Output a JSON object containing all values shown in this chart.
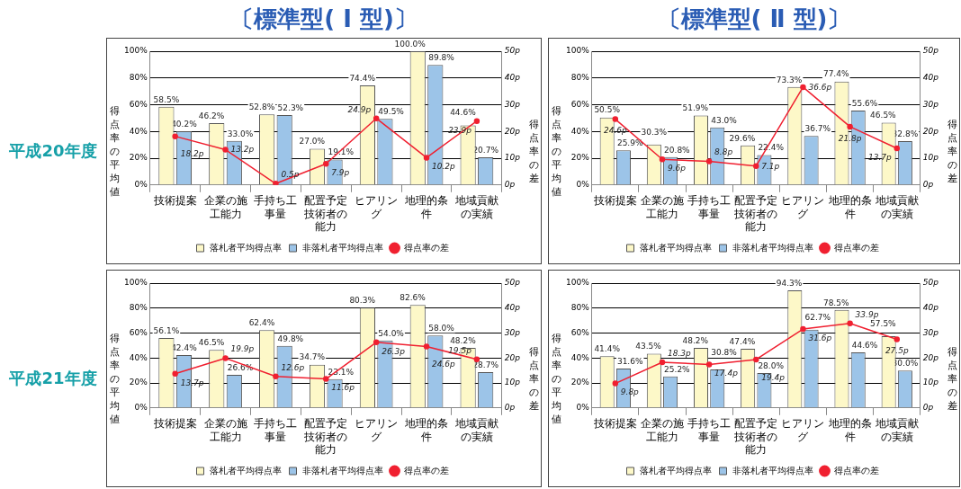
{
  "chart_data": [
    {
      "type": "bar",
      "title": "〔標準型( Ⅰ 型)〕",
      "subtitle": "平成20年度",
      "ylabel": "得点率の平均値",
      "y2label": "得点率の差",
      "categories": [
        "技術提案",
        "企業の施工能力",
        "手持ち工事量",
        "配置予定技術者の能力",
        "ヒアリング",
        "地理的条件",
        "地域貢献の実績"
      ],
      "ylim": [
        0,
        100
      ],
      "yticks": [
        {
          "value": 0,
          "label": "0%"
        },
        {
          "value": 20,
          "label": "20%"
        },
        {
          "value": 40,
          "label": "40%"
        },
        {
          "value": 60,
          "label": "60%"
        },
        {
          "value": 80,
          "label": "80%"
        },
        {
          "value": 100,
          "label": "100%"
        }
      ],
      "y2lim": [
        0,
        50
      ],
      "y2ticks": [
        {
          "value": 0,
          "label": "0p"
        },
        {
          "value": 10,
          "label": "10p"
        },
        {
          "value": 20,
          "label": "20p"
        },
        {
          "value": 30,
          "label": "30p"
        },
        {
          "value": 40,
          "label": "40p"
        },
        {
          "value": 50,
          "label": "50p"
        }
      ],
      "grid": "y",
      "legend": "bottom",
      "marker": "circle",
      "series": [
        {
          "name": "落札者平均得点率",
          "color": "#fdf8c8",
          "values": [
            58.5,
            46.2,
            52.8,
            27.0,
            74.4,
            100.0,
            44.6
          ],
          "value_labels": [
            "58.5%",
            "46.2%",
            "52.8%",
            "27.0%",
            "74.4%",
            "100.0%",
            "44.6%"
          ]
        },
        {
          "name": "非落札者平均得点率",
          "color": "#9cc4e8",
          "values": [
            40.2,
            33.0,
            52.3,
            19.1,
            49.5,
            89.8,
            20.7
          ],
          "value_labels": [
            "40.2%",
            "33.0%",
            "52.3%",
            "19.1%",
            "49.5%",
            "89.8%",
            "20.7%"
          ]
        },
        {
          "name": "得点率の差",
          "type": "line",
          "axis": "y2",
          "color": "#f02030",
          "values": [
            18.2,
            13.2,
            0.5,
            7.9,
            24.9,
            10.2,
            23.9
          ],
          "value_labels": [
            "18.2p",
            "13.2p",
            "0.5p",
            "7.9p",
            "24.9p",
            "10.2p",
            "23.9p"
          ]
        }
      ]
    },
    {
      "type": "bar",
      "title": "〔標準型( Ⅱ 型)〕",
      "ylabel": "得点率の平均値",
      "y2label": "得点率の差",
      "categories": [
        "技術提案",
        "企業の施工能力",
        "手持ち工事量",
        "配置予定技術者の能力",
        "ヒアリング",
        "地理的条件",
        "地域貢献の実績"
      ],
      "ylim": [
        0,
        100
      ],
      "yticks": [
        {
          "value": 0,
          "label": "0%"
        },
        {
          "value": 20,
          "label": "20%"
        },
        {
          "value": 40,
          "label": "40%"
        },
        {
          "value": 60,
          "label": "60%"
        },
        {
          "value": 80,
          "label": "80%"
        },
        {
          "value": 100,
          "label": "100%"
        }
      ],
      "y2lim": [
        0,
        50
      ],
      "y2ticks": [
        {
          "value": 0,
          "label": "0p"
        },
        {
          "value": 10,
          "label": "10p"
        },
        {
          "value": 20,
          "label": "20p"
        },
        {
          "value": 30,
          "label": "30p"
        },
        {
          "value": 40,
          "label": "40p"
        },
        {
          "value": 50,
          "label": "50p"
        }
      ],
      "grid": "y",
      "legend": "bottom",
      "marker": "circle",
      "series": [
        {
          "name": "落札者平均得点率",
          "color": "#fdf8c8",
          "values": [
            50.5,
            30.3,
            51.9,
            29.6,
            73.3,
            77.4,
            46.5
          ],
          "value_labels": [
            "50.5%",
            "30.3%",
            "51.9%",
            "29.6%",
            "73.3%",
            "77.4%",
            "46.5%"
          ]
        },
        {
          "name": "非落札者平均得点率",
          "color": "#9cc4e8",
          "values": [
            25.9,
            20.8,
            43.0,
            22.4,
            36.7,
            55.6,
            32.8
          ],
          "value_labels": [
            "25.9%",
            "20.8%",
            "43.0%",
            "22.4%",
            "36.7%",
            "55.6%",
            "32.8%"
          ]
        },
        {
          "name": "得点率の差",
          "type": "line",
          "axis": "y2",
          "color": "#f02030",
          "values": [
            24.6,
            9.6,
            8.8,
            7.1,
            36.6,
            21.8,
            13.7
          ],
          "value_labels": [
            "24.6p",
            "9.6p",
            "8.8p",
            "7.1p",
            "36.6p",
            "21.8p",
            "13.7p"
          ]
        }
      ]
    },
    {
      "type": "bar",
      "subtitle": "平成21年度",
      "ylabel": "得点率の平均値",
      "y2label": "得点率の差",
      "categories": [
        "技術提案",
        "企業の施工能力",
        "手持ち工事量",
        "配置予定技術者の能力",
        "ヒアリング",
        "地理的条件",
        "地域貢献の実績"
      ],
      "ylim": [
        0,
        100
      ],
      "yticks": [
        {
          "value": 0,
          "label": "0%"
        },
        {
          "value": 20,
          "label": "20%"
        },
        {
          "value": 40,
          "label": "40%"
        },
        {
          "value": 60,
          "label": "60%"
        },
        {
          "value": 80,
          "label": "80%"
        },
        {
          "value": 100,
          "label": "100%"
        }
      ],
      "y2lim": [
        0,
        50
      ],
      "y2ticks": [
        {
          "value": 0,
          "label": "0p"
        },
        {
          "value": 10,
          "label": "10p"
        },
        {
          "value": 20,
          "label": "20p"
        },
        {
          "value": 30,
          "label": "30p"
        },
        {
          "value": 40,
          "label": "40p"
        },
        {
          "value": 50,
          "label": "50p"
        }
      ],
      "grid": "y",
      "legend": "bottom",
      "marker": "circle",
      "series": [
        {
          "name": "落札者平均得点率",
          "color": "#fdf8c8",
          "values": [
            56.1,
            46.5,
            62.4,
            34.7,
            80.3,
            82.6,
            48.2
          ],
          "value_labels": [
            "56.1%",
            "46.5%",
            "62.4%",
            "34.7%",
            "80.3%",
            "82.6%",
            "48.2%"
          ]
        },
        {
          "name": "非落札者平均得点率",
          "color": "#9cc4e8",
          "values": [
            42.4,
            26.6,
            49.8,
            23.1,
            54.0,
            58.0,
            28.7
          ],
          "value_labels": [
            "42.4%",
            "26.6%",
            "49.8%",
            "23.1%",
            "54.0%",
            "58.0%",
            "28.7%"
          ]
        },
        {
          "name": "得点率の差",
          "type": "line",
          "axis": "y2",
          "color": "#f02030",
          "values": [
            13.7,
            19.9,
            12.6,
            11.6,
            26.3,
            24.6,
            19.5
          ],
          "value_labels": [
            "13.7p",
            "19.9p",
            "12.6p",
            "11.6p",
            "26.3p",
            "24.6p",
            "19.5p"
          ]
        }
      ]
    },
    {
      "type": "bar",
      "ylabel": "得点率の平均値",
      "y2label": "得点率の差",
      "categories": [
        "技術提案",
        "企業の施工能力",
        "手持ち工事量",
        "配置予定技術者の能力",
        "ヒアリング",
        "地理的条件",
        "地域貢献の実績"
      ],
      "ylim": [
        0,
        100
      ],
      "yticks": [
        {
          "value": 0,
          "label": "0%"
        },
        {
          "value": 20,
          "label": "20%"
        },
        {
          "value": 40,
          "label": "40%"
        },
        {
          "value": 60,
          "label": "60%"
        },
        {
          "value": 80,
          "label": "80%"
        },
        {
          "value": 100,
          "label": "100%"
        }
      ],
      "y2lim": [
        0,
        50
      ],
      "y2ticks": [
        {
          "value": 0,
          "label": "0p"
        },
        {
          "value": 10,
          "label": "10p"
        },
        {
          "value": 20,
          "label": "20p"
        },
        {
          "value": 30,
          "label": "30p"
        },
        {
          "value": 40,
          "label": "40p"
        },
        {
          "value": 50,
          "label": "50p"
        }
      ],
      "grid": "y",
      "legend": "bottom",
      "marker": "circle",
      "series": [
        {
          "name": "落札者平均得点率",
          "color": "#fdf8c8",
          "values": [
            41.4,
            43.5,
            48.2,
            47.4,
            94.3,
            78.5,
            57.5
          ],
          "value_labels": [
            "41.4%",
            "43.5%",
            "48.2%",
            "47.4%",
            "94.3%",
            "78.5%",
            "57.5%"
          ]
        },
        {
          "name": "非落札者平均得点率",
          "color": "#9cc4e8",
          "values": [
            31.6,
            25.2,
            30.8,
            28.0,
            62.7,
            44.6,
            30.0
          ],
          "value_labels": [
            "31.6%",
            "25.2%",
            "30.8%",
            "28.0%",
            "62.7%",
            "44.6%",
            "30.0%"
          ]
        },
        {
          "name": "得点率の差",
          "type": "line",
          "axis": "y2",
          "color": "#f02030",
          "values": [
            9.8,
            18.3,
            17.4,
            19.4,
            31.6,
            33.9,
            27.5
          ],
          "value_labels": [
            "9.8p",
            "18.3p",
            "17.4p",
            "19.4p",
            "31.6p",
            "33.9p",
            "27.5p"
          ]
        }
      ]
    }
  ]
}
